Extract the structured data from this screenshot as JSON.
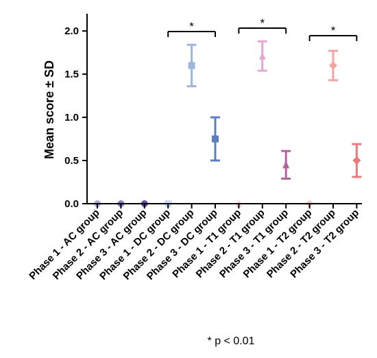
{
  "chart_data": {
    "type": "scatter",
    "ylabel": "Mean score ± SD",
    "xlabel": "",
    "ylim": [
      0,
      2.2
    ],
    "yticks": [
      "0.0",
      "0.5",
      "1.0",
      "1.5",
      "2.0"
    ],
    "categories": [
      "Phase 1 - AC group",
      "Phase 2 - AC group",
      "Phase 3 - AC group",
      "Phase 1 - DC group",
      "Phase 2 - DC group",
      "Phase 3 - DC group",
      "Phase 1 - T1 group",
      "Phase 2 - T1 group",
      "Phase 3 - T1 group",
      "Phase 1 - T2 group",
      "Phase 2 - T2 group",
      "Phase 3 - T2 group"
    ],
    "points": [
      {
        "mean": 0.0,
        "sd": 0.0,
        "color": "#b4a7d6",
        "marker": "circle"
      },
      {
        "mean": 0.0,
        "sd": 0.0,
        "color": "#8e7cc3",
        "marker": "circle"
      },
      {
        "mean": 0.0,
        "sd": 0.0,
        "color": "#674ea7",
        "marker": "circle"
      },
      {
        "mean": 0.0,
        "sd": 0.0,
        "color": "#c9daf8",
        "marker": "square"
      },
      {
        "mean": 1.6,
        "sd": 0.24,
        "color": "#9fb4dc",
        "marker": "square"
      },
      {
        "mean": 0.75,
        "sd": 0.25,
        "color": "#5a7fbf",
        "marker": "square"
      },
      {
        "mean": 0.0,
        "sd": 0.0,
        "color": "#f4cce0",
        "marker": "triangle"
      },
      {
        "mean": 1.71,
        "sd": 0.17,
        "color": "#e8a6d0",
        "marker": "triangle"
      },
      {
        "mean": 0.45,
        "sd": 0.16,
        "color": "#b5609f",
        "marker": "triangle"
      },
      {
        "mean": 0.0,
        "sd": 0.0,
        "color": "#f9cbc4",
        "marker": "diamond"
      },
      {
        "mean": 1.6,
        "sd": 0.17,
        "color": "#f4a3a3",
        "marker": "diamond"
      },
      {
        "mean": 0.5,
        "sd": 0.19,
        "color": "#ea7a7a",
        "marker": "diamond"
      }
    ],
    "significance": [
      {
        "from": 4,
        "to": 6,
        "label": "*"
      },
      {
        "from": 7,
        "to": 9,
        "label": "*"
      },
      {
        "from": 10,
        "to": 12,
        "label": "*"
      }
    ],
    "footnote": "* p < 0.01"
  }
}
